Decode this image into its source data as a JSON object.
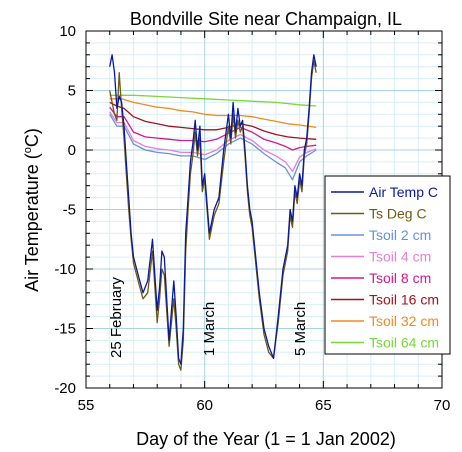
{
  "chart_data": {
    "type": "line",
    "title": "Bondville Site near Champaign, IL",
    "xlabel": "Day of the Year (1 = 1 Jan 2002)",
    "ylabel_main": "Air Temperature (",
    "ylabel_sup": "o",
    "ylabel_end": "C)",
    "xlim": [
      55,
      70
    ],
    "ylim": [
      -20,
      10
    ],
    "xticks": [
      55,
      60,
      65,
      70
    ],
    "yticks": [
      -20,
      -15,
      -10,
      -5,
      0,
      5,
      10
    ],
    "grid": true,
    "legend_position": "right",
    "annotations": [
      {
        "text": "25 February",
        "x": 56.3,
        "y": -16.5
      },
      {
        "text": "1 March",
        "x": 60.1,
        "y": -16.3
      },
      {
        "text": "5 March",
        "x": 64.1,
        "y": -16.2
      }
    ],
    "series": [
      {
        "name": "Air Temp C",
        "color": "#0a1a9a",
        "x": [
          56.0,
          56.1,
          56.2,
          56.3,
          56.4,
          56.5,
          56.6,
          56.7,
          56.8,
          56.9,
          57.0,
          57.2,
          57.4,
          57.6,
          57.8,
          58.0,
          58.1,
          58.2,
          58.3,
          58.5,
          58.7,
          58.8,
          58.9,
          59.0,
          59.1,
          59.2,
          59.3,
          59.4,
          59.5,
          59.6,
          59.7,
          59.8,
          59.9,
          60.0,
          60.2,
          60.4,
          60.6,
          60.8,
          61.0,
          61.1,
          61.2,
          61.3,
          61.4,
          61.5,
          61.6,
          61.7,
          61.8,
          61.9,
          62.0,
          62.1,
          62.3,
          62.5,
          62.7,
          62.9,
          63.1,
          63.3,
          63.5,
          63.6,
          63.7,
          63.8,
          63.9,
          64.0,
          64.1,
          64.2,
          64.3,
          64.4,
          64.5,
          64.6,
          64.7
        ],
        "values": [
          7.0,
          8.0,
          6.5,
          3.5,
          4.5,
          4.0,
          2.0,
          -1.0,
          -4.0,
          -7.0,
          -9.0,
          -10.5,
          -12.0,
          -11.0,
          -7.5,
          -13.5,
          -11.5,
          -8.5,
          -9.0,
          -16.0,
          -11.0,
          -14.0,
          -17.5,
          -18.0,
          -15.0,
          -7.0,
          -4.0,
          -1.0,
          0.5,
          2.5,
          0.0,
          2.0,
          -3.0,
          -2.0,
          -7.0,
          -5.0,
          -4.0,
          0.0,
          3.0,
          1.0,
          4.0,
          1.5,
          3.5,
          2.0,
          2.5,
          0.0,
          -3.0,
          -5.0,
          -6.0,
          -8.0,
          -12.0,
          -15.0,
          -16.5,
          -17.5,
          -14.0,
          -10.0,
          -8.0,
          -5.0,
          -6.0,
          -3.0,
          -4.0,
          -2.0,
          -3.0,
          0.0,
          1.0,
          3.5,
          6.5,
          8.0,
          7.0
        ]
      },
      {
        "name": "Ts Deg C",
        "color": "#6e5a14",
        "x": [
          56.0,
          56.1,
          56.2,
          56.3,
          56.4,
          56.5,
          56.6,
          56.7,
          56.8,
          56.9,
          57.0,
          57.2,
          57.4,
          57.6,
          57.8,
          58.0,
          58.1,
          58.2,
          58.3,
          58.5,
          58.7,
          58.8,
          58.9,
          59.0,
          59.1,
          59.2,
          59.3,
          59.4,
          59.5,
          59.6,
          59.7,
          59.8,
          59.9,
          60.0,
          60.2,
          60.4,
          60.6,
          60.8,
          61.0,
          61.1,
          61.2,
          61.3,
          61.4,
          61.5,
          61.6,
          61.7,
          61.8,
          61.9,
          62.0,
          62.1,
          62.3,
          62.5,
          62.7,
          62.9,
          63.1,
          63.3,
          63.5,
          63.6,
          63.7,
          63.8,
          63.9,
          64.0,
          64.1,
          64.2,
          64.3,
          64.4,
          64.5,
          64.6,
          64.7
        ],
        "values": [
          5.0,
          4.0,
          3.0,
          2.5,
          6.5,
          3.5,
          1.0,
          -2.0,
          -5.0,
          -7.5,
          -9.5,
          -11.0,
          -12.5,
          -12.0,
          -8.5,
          -14.5,
          -12.5,
          -10.0,
          -10.5,
          -16.5,
          -12.5,
          -15.0,
          -18.0,
          -18.5,
          -16.0,
          -8.5,
          -5.0,
          -2.0,
          -0.5,
          1.5,
          -0.5,
          1.0,
          -3.5,
          -2.5,
          -7.5,
          -5.5,
          -4.5,
          -1.0,
          2.0,
          0.5,
          3.0,
          1.0,
          2.5,
          1.5,
          2.0,
          -0.5,
          -3.5,
          -5.5,
          -6.5,
          -8.5,
          -12.5,
          -15.5,
          -17.0,
          -17.5,
          -14.5,
          -10.5,
          -8.5,
          -5.5,
          -6.5,
          -3.5,
          -4.5,
          -2.5,
          -3.5,
          -0.5,
          0.5,
          3.0,
          6.0,
          7.5,
          6.5
        ]
      },
      {
        "name": "Tsoil 2 cm",
        "color": "#6a8fe0",
        "x": [
          56.0,
          56.3,
          56.6,
          57.0,
          57.5,
          58.0,
          58.5,
          59.0,
          59.5,
          60.0,
          60.5,
          61.0,
          61.5,
          62.0,
          62.5,
          63.0,
          63.4,
          63.7,
          64.0,
          64.3,
          64.7
        ],
        "values": [
          3.0,
          2.0,
          2.0,
          0.5,
          0.0,
          -0.2,
          -0.3,
          -0.5,
          -0.5,
          -0.8,
          -0.3,
          0.5,
          1.0,
          0.5,
          -0.3,
          -1.0,
          -1.5,
          -2.5,
          -1.0,
          -0.5,
          0.0
        ]
      },
      {
        "name": "Tsoil 4 cm",
        "color": "#e27fd8",
        "x": [
          56.0,
          56.3,
          56.6,
          57.0,
          57.5,
          58.0,
          58.5,
          59.0,
          59.5,
          60.0,
          60.5,
          61.0,
          61.5,
          62.0,
          62.5,
          63.0,
          63.4,
          63.7,
          64.0,
          64.3,
          64.7
        ],
        "values": [
          3.2,
          2.3,
          2.3,
          0.8,
          0.3,
          0.1,
          0.0,
          -0.2,
          -0.2,
          -0.4,
          0.0,
          0.8,
          1.3,
          0.8,
          0.0,
          -0.5,
          -1.0,
          -1.8,
          -0.6,
          -0.2,
          0.1
        ]
      },
      {
        "name": "Tsoil 8 cm",
        "color": "#d11a8f",
        "x": [
          56.0,
          56.3,
          56.6,
          57.0,
          57.5,
          58.0,
          58.5,
          59.0,
          59.5,
          60.0,
          60.5,
          61.0,
          61.5,
          62.0,
          62.5,
          63.0,
          63.4,
          63.7,
          64.0,
          64.3,
          64.7
        ],
        "values": [
          3.6,
          2.8,
          2.8,
          1.5,
          1.1,
          1.0,
          0.9,
          0.8,
          0.8,
          0.7,
          0.9,
          1.4,
          1.9,
          1.5,
          0.9,
          0.6,
          0.3,
          0.0,
          0.2,
          0.3,
          0.4
        ]
      },
      {
        "name": "Tsoil 16 cm",
        "color": "#a0141e",
        "x": [
          56.0,
          56.3,
          56.6,
          57.0,
          57.5,
          58.0,
          58.5,
          59.0,
          59.5,
          60.0,
          60.5,
          61.0,
          61.5,
          62.0,
          62.5,
          63.0,
          63.5,
          64.0,
          64.7
        ],
        "values": [
          4.0,
          3.7,
          3.5,
          2.8,
          2.4,
          2.2,
          2.0,
          1.9,
          1.8,
          1.7,
          1.7,
          1.9,
          2.2,
          2.0,
          1.6,
          1.3,
          1.1,
          1.0,
          0.9
        ]
      },
      {
        "name": "Tsoil 32 cm",
        "color": "#f08a1e",
        "x": [
          56.0,
          56.5,
          57.0,
          57.5,
          58.0,
          58.5,
          59.0,
          59.5,
          60.0,
          60.5,
          61.0,
          61.5,
          62.0,
          62.5,
          63.0,
          63.5,
          64.0,
          64.7
        ],
        "values": [
          4.3,
          4.3,
          4.0,
          3.8,
          3.6,
          3.5,
          3.3,
          3.2,
          3.0,
          2.9,
          2.9,
          2.9,
          2.8,
          2.6,
          2.4,
          2.2,
          2.1,
          1.9
        ]
      },
      {
        "name": "Tsoil 64 cm",
        "color": "#7ad63a",
        "x": [
          56.0,
          57.0,
          58.0,
          59.0,
          60.0,
          61.0,
          62.0,
          63.0,
          64.0,
          64.7
        ],
        "values": [
          4.6,
          4.6,
          4.5,
          4.4,
          4.3,
          4.2,
          4.1,
          4.0,
          3.8,
          3.7
        ]
      }
    ]
  }
}
